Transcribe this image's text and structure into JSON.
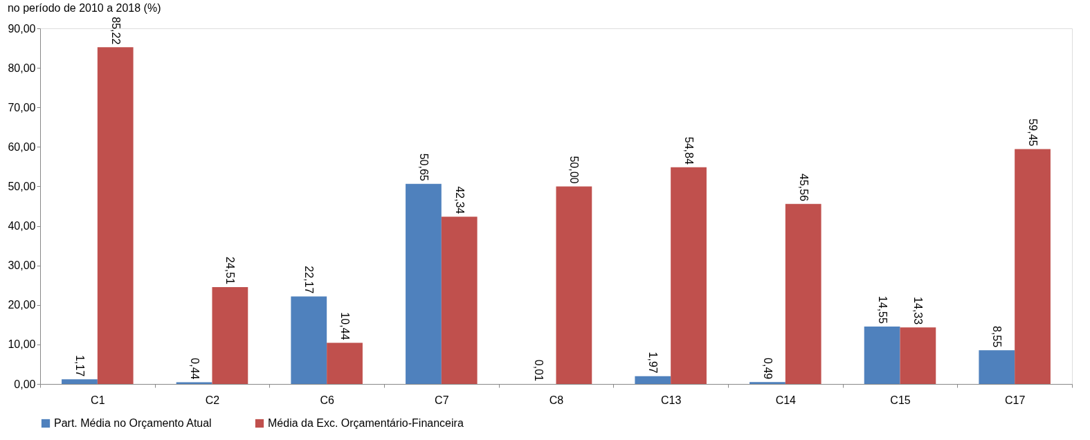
{
  "chart_data": {
    "type": "bar",
    "title": "no período de 2010 a 2018 (%)",
    "categories": [
      "C1",
      "C2",
      "C6",
      "C7",
      "C8",
      "C13",
      "C14",
      "C15",
      "C17"
    ],
    "series": [
      {
        "name": "Part. Média no Orçamento Atual",
        "color": "#4f81bd",
        "values": [
          1.17,
          0.44,
          22.17,
          50.65,
          0.01,
          1.97,
          0.49,
          14.55,
          8.55
        ],
        "value_labels": [
          "1,17",
          "0,44",
          "22,17",
          "50,65",
          "0,01",
          "1,97",
          "0,49",
          "14,55",
          "8,55"
        ]
      },
      {
        "name": "Média da Exc. Orçamentário-Financeira",
        "color": "#c0504d",
        "values": [
          85.22,
          24.51,
          10.44,
          42.34,
          50.0,
          54.84,
          45.56,
          14.33,
          59.45
        ],
        "value_labels": [
          "85,22",
          "24,51",
          "10,44",
          "42,34",
          "50,00",
          "54,84",
          "45,56",
          "14,33",
          "59,45"
        ]
      }
    ],
    "ylim": [
      0,
      90
    ],
    "yticks": [
      {
        "value": 0,
        "label": "0,00"
      },
      {
        "value": 10,
        "label": "10,00"
      },
      {
        "value": 20,
        "label": "20,00"
      },
      {
        "value": 30,
        "label": "30,00"
      },
      {
        "value": 40,
        "label": "40,00"
      },
      {
        "value": 50,
        "label": "50,00"
      },
      {
        "value": 60,
        "label": "60,00"
      },
      {
        "value": 70,
        "label": "70,00"
      },
      {
        "value": 80,
        "label": "80,00"
      },
      {
        "value": 90,
        "label": "90,00"
      }
    ],
    "grid": false,
    "legend": "bottom"
  }
}
